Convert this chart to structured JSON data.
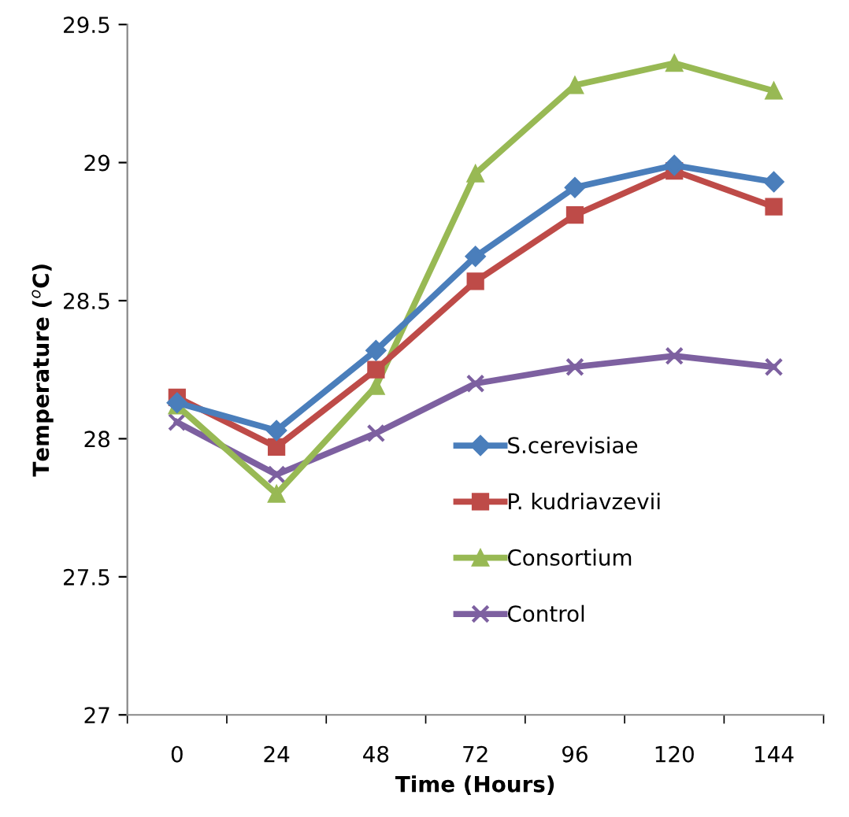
{
  "chart_data": {
    "type": "line",
    "xlabel": "Time (Hours)",
    "ylabel": "Temperature ($^{o}$C)",
    "categories": [
      "0",
      "24",
      "48",
      "72",
      "96",
      "120",
      "144"
    ],
    "series": [
      {
        "name": "S.cerevisiae",
        "color": "#4a7ebb",
        "marker": "diamond",
        "values": [
          28.13,
          28.03,
          28.32,
          28.66,
          28.91,
          28.99,
          28.93
        ]
      },
      {
        "name": "P. kudriavzevii",
        "color": "#be4b48",
        "marker": "square",
        "values": [
          28.15,
          27.97,
          28.25,
          28.57,
          28.81,
          28.97,
          28.84
        ]
      },
      {
        "name": "Consortium",
        "color": "#98b954",
        "marker": "triangle",
        "values": [
          28.12,
          27.8,
          28.19,
          28.96,
          29.28,
          29.36,
          29.26
        ]
      },
      {
        "name": "Control",
        "color": "#7d60a0",
        "marker": "cross",
        "values": [
          28.06,
          27.87,
          28.02,
          28.2,
          28.26,
          28.3,
          28.26
        ]
      }
    ],
    "ylim": [
      27,
      29.5
    ],
    "yticks": [
      27,
      27.5,
      28,
      28.5,
      29,
      29.5
    ],
    "grid": false,
    "legend": "bottom",
    "line_style": "solid"
  }
}
